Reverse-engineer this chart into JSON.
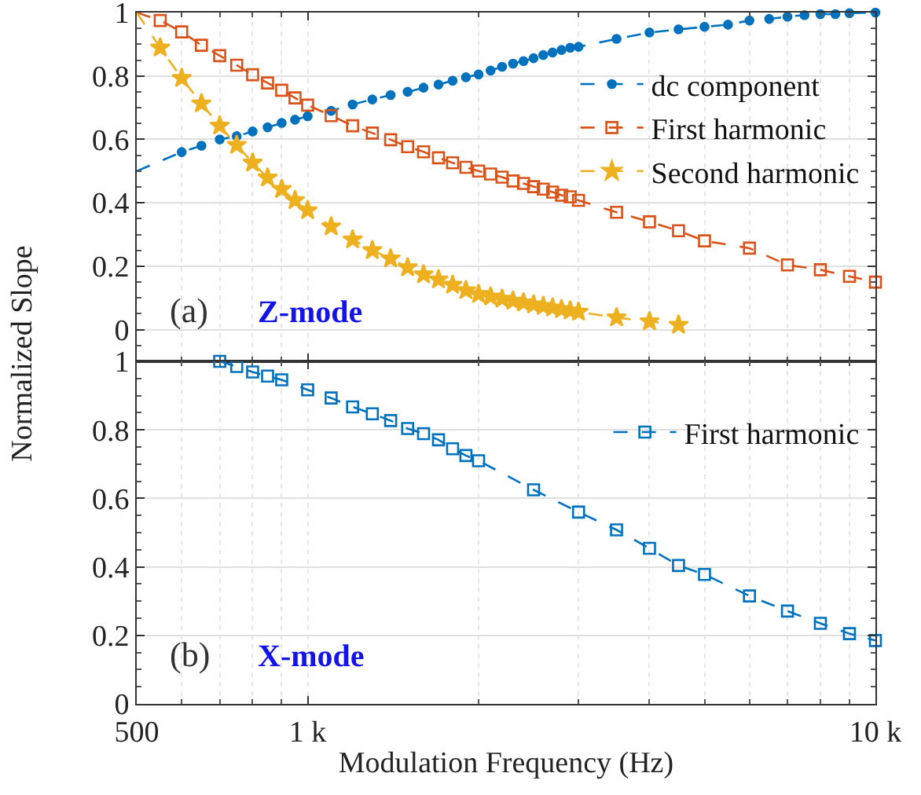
{
  "chart_data": [
    {
      "type": "line",
      "ylabel": "Normalized Slope",
      "xlim": [
        500,
        10000
      ],
      "log": "x",
      "xticks": [
        {
          "value": 500,
          "label": null
        },
        {
          "value": 1000,
          "label": null
        },
        {
          "value": 10000,
          "label": null
        }
      ],
      "ylim": [
        -0.1,
        1
      ],
      "yticks": [
        0,
        0.2,
        0.4,
        0.6,
        0.8,
        1
      ],
      "tick_labels": "y",
      "grid": true,
      "legend": "top right",
      "line_style": "dashed",
      "annotations": [
        "(a)",
        "Z-mode"
      ],
      "series": [
        {
          "name": "dc component",
          "color": "#0072bd",
          "marker": "circle",
          "x": [
            500,
            600,
            650,
            700,
            750,
            800,
            850,
            900,
            950,
            1000,
            1100,
            1200,
            1300,
            1400,
            1500,
            1600,
            1700,
            1800,
            1900,
            2000,
            2100,
            2200,
            2300,
            2400,
            2500,
            2600,
            2700,
            2800,
            2900,
            3000,
            3500,
            4000,
            4500,
            5000,
            5500,
            6000,
            6500,
            7000,
            7500,
            8000,
            8500,
            9000,
            10000
          ],
          "values": [
            0.5,
            0.56,
            0.58,
            0.6,
            0.61,
            0.625,
            0.638,
            0.652,
            0.662,
            0.673,
            0.69,
            0.71,
            0.726,
            0.74,
            0.75,
            0.763,
            0.773,
            0.785,
            0.796,
            0.805,
            0.817,
            0.829,
            0.839,
            0.847,
            0.856,
            0.866,
            0.874,
            0.882,
            0.889,
            0.892,
            0.917,
            0.937,
            0.947,
            0.955,
            0.962,
            0.975,
            0.98,
            0.987,
            0.992,
            0.995,
            0.995,
            0.998,
            1.0
          ]
        },
        {
          "name": "First harmonic",
          "color": "#d95319",
          "marker": "square",
          "x": [
            500,
            550,
            600,
            650,
            700,
            750,
            800,
            850,
            900,
            950,
            1000,
            1100,
            1200,
            1300,
            1400,
            1500,
            1600,
            1700,
            1800,
            1900,
            2000,
            2100,
            2200,
            2300,
            2400,
            2500,
            2600,
            2700,
            2800,
            2900,
            3000,
            3500,
            4000,
            4500,
            5000,
            6000,
            7000,
            8000,
            9000,
            10000
          ],
          "values": [
            1.0,
            0.975,
            0.939,
            0.897,
            0.864,
            0.834,
            0.804,
            0.778,
            0.755,
            0.731,
            0.708,
            0.675,
            0.643,
            0.62,
            0.599,
            0.577,
            0.561,
            0.542,
            0.526,
            0.512,
            0.5,
            0.491,
            0.481,
            0.469,
            0.461,
            0.451,
            0.443,
            0.434,
            0.424,
            0.419,
            0.408,
            0.37,
            0.34,
            0.312,
            0.28,
            0.257,
            0.204,
            0.189,
            0.168,
            0.15
          ]
        },
        {
          "name": "Second harmonic",
          "color": "#edb120",
          "marker": "star",
          "x": [
            500,
            550,
            600,
            650,
            700,
            750,
            800,
            850,
            900,
            950,
            1000,
            1100,
            1200,
            1300,
            1400,
            1500,
            1600,
            1700,
            1800,
            1900,
            2000,
            2100,
            2200,
            2300,
            2400,
            2500,
            2600,
            2700,
            2800,
            2900,
            3000,
            3500,
            4000,
            4500
          ],
          "values": [
            1.0,
            0.889,
            0.793,
            0.713,
            0.643,
            0.582,
            0.526,
            0.479,
            0.443,
            0.408,
            0.376,
            0.325,
            0.284,
            0.25,
            0.224,
            0.196,
            0.174,
            0.158,
            0.141,
            0.124,
            0.112,
            0.104,
            0.097,
            0.091,
            0.085,
            0.079,
            0.074,
            0.069,
            0.064,
            0.06,
            0.056,
            0.038,
            0.026,
            0.015
          ]
        }
      ]
    },
    {
      "type": "line",
      "xlabel": "Modulation Frequency (Hz)",
      "xlim": [
        500,
        10000
      ],
      "log": "x",
      "xticks": [
        {
          "value": 500,
          "label": "500"
        },
        {
          "value": 1000,
          "label": "1 k"
        },
        {
          "value": 10000,
          "label": "10 k"
        }
      ],
      "ylim": [
        0,
        1
      ],
      "yticks": [
        0,
        0.2,
        0.4,
        0.6,
        0.8,
        1
      ],
      "grid": true,
      "legend": "top right",
      "line_style": "dashed",
      "annotations": [
        "(b)",
        "X-mode"
      ],
      "series": [
        {
          "name": "First harmonic",
          "color": "#0072bd",
          "marker": "square",
          "x": [
            700,
            750,
            800,
            850,
            900,
            1000,
            1100,
            1200,
            1300,
            1400,
            1500,
            1600,
            1700,
            1800,
            1900,
            2000,
            2500,
            3000,
            3500,
            4000,
            4500,
            5000,
            6000,
            7000,
            8000,
            9000,
            10000
          ],
          "values": [
            1.0,
            0.985,
            0.969,
            0.957,
            0.946,
            0.917,
            0.893,
            0.867,
            0.847,
            0.827,
            0.804,
            0.789,
            0.771,
            0.745,
            0.725,
            0.71,
            0.625,
            0.56,
            0.508,
            0.454,
            0.404,
            0.378,
            0.315,
            0.271,
            0.235,
            0.205,
            0.185
          ]
        }
      ]
    }
  ]
}
